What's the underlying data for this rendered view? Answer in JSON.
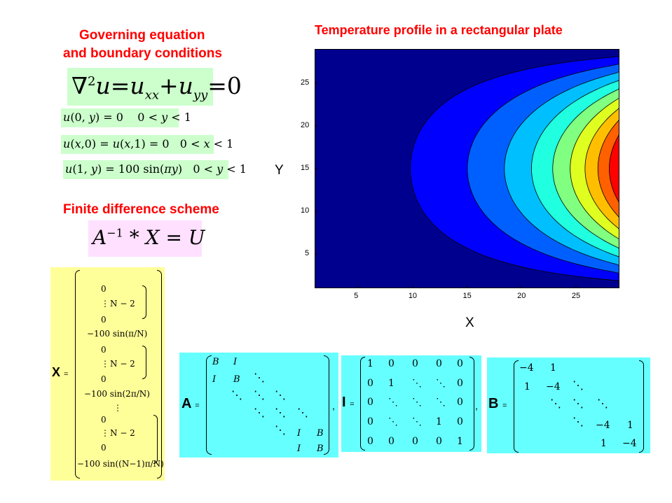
{
  "left": {
    "title_line1": "Governing equation",
    "title_line2": "and boundary conditions",
    "laplace": "∇²u=uₓₓ+u_yy=0",
    "bc1": "u(0, y) = 0     0 < y < 1",
    "bc2": "u(x,0) = u(x,1) = 0    0 < x < 1",
    "bc3": "u(1, y) = 100 sin(πy)    0 < y < 1",
    "fd_title": "Finite difference scheme",
    "fd_eq": "A⁻¹ * X = U"
  },
  "plot": {
    "title": "Temperature profile in a rectangular plate",
    "xlabel": "X",
    "ylabel": "Y",
    "xticks": [
      "5",
      "10",
      "15",
      "20",
      "25"
    ],
    "yticks": [
      "25",
      "20",
      "15",
      "10",
      "5"
    ],
    "colors": [
      "#00008f",
      "#0000ff",
      "#0060ff",
      "#00bfff",
      "#20ffdf",
      "#80ff80",
      "#dfff20",
      "#ffbf00",
      "#ff6000",
      "#ff0000"
    ]
  },
  "chart_data": {
    "type": "contour",
    "title": "Temperature profile in a rectangular plate",
    "xlabel": "X",
    "ylabel": "Y",
    "xlim": [
      1,
      29
    ],
    "ylim": [
      1,
      29
    ],
    "xticks": [
      5,
      10,
      15,
      20,
      25
    ],
    "yticks": [
      5,
      10,
      15,
      20,
      25
    ],
    "levels": 10,
    "field": "u(x,y) = 100·sin(πy)·sinh(πx)/sinh(π)"
  },
  "matrices": {
    "x_label": "X =",
    "x_entries": [
      "0",
      "⋮",
      "N − 2",
      "0",
      "−100 sin(π/N)",
      "0",
      "⋮",
      "N − 2",
      "0",
      "−100 sin(2π/N)",
      "⋮",
      "0",
      "⋮",
      "N − 2",
      "0",
      "−100 sin((N−1)π/N)"
    ],
    "a_label": "A =",
    "a_entries": [
      "B",
      "I",
      "I",
      "B",
      "I",
      "B"
    ],
    "i_label": "I =",
    "i_rows": [
      [
        "1",
        "0",
        "0",
        "0",
        "0"
      ],
      [
        "0",
        "1",
        "⋱",
        "⋱",
        "0"
      ],
      [
        "0",
        "⋱",
        "⋱",
        "⋱",
        "0"
      ],
      [
        "0",
        "⋱",
        "⋱",
        "1",
        "0"
      ],
      [
        "0",
        "0",
        "0",
        "0",
        "1"
      ]
    ],
    "b_label": "B =",
    "b_entries": [
      "−4",
      "1",
      "1",
      "−4",
      "−4",
      "1",
      "1",
      "−4"
    ],
    "separator": ","
  }
}
